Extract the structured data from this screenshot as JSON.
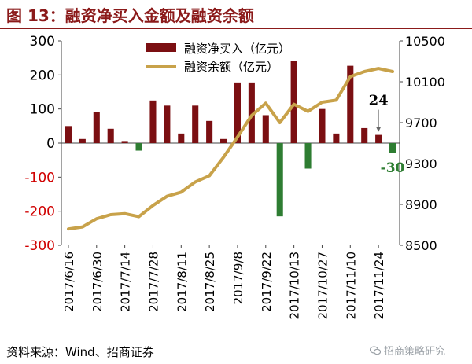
{
  "header": {
    "title": "图 13：融资净买入金额及融资余额"
  },
  "footer": {
    "source": "资料来源：Wind、招商证券",
    "watermark": "招商策略研究"
  },
  "colors": {
    "bar_positive": "#7b0f12",
    "bar_negative": "#2e7d32",
    "line": "#c8a24a",
    "title": "#8b1a1a",
    "negative_tick": "#d00000"
  },
  "chart_data": {
    "type": "bar+line",
    "x_ticks": [
      "2017/6/16",
      "2017/6/30",
      "2017/7/14",
      "2017/7/28",
      "2017/8/11",
      "2017/8/25",
      "2017/9/8",
      "2017/9/22",
      "2017/10/13",
      "2017/10/27",
      "2017/11/10",
      "2017/11/24"
    ],
    "categories": [
      "2017/6/16",
      "2017/6/23",
      "2017/6/30",
      "2017/7/7",
      "2017/7/14",
      "2017/7/21",
      "2017/7/28",
      "2017/8/4",
      "2017/8/11",
      "2017/8/18",
      "2017/8/25",
      "2017/9/1",
      "2017/9/8",
      "2017/9/15",
      "2017/9/22",
      "2017/9/29",
      "2017/10/13",
      "2017/10/20",
      "2017/10/27",
      "2017/11/3",
      "2017/11/10",
      "2017/11/17",
      "2017/11/24",
      "2017/12/1"
    ],
    "series": [
      {
        "name": "融资净买入（亿元）",
        "type": "bar",
        "axis": "left",
        "values": [
          50,
          12,
          90,
          42,
          6,
          -22,
          125,
          110,
          28,
          110,
          65,
          12,
          178,
          178,
          82,
          -215,
          240,
          -75,
          100,
          28,
          227,
          44,
          24,
          -30
        ]
      },
      {
        "name": "融资余额（亿元）",
        "type": "line",
        "axis": "right",
        "values": [
          8660,
          8680,
          8760,
          8800,
          8810,
          8780,
          8890,
          8980,
          9020,
          9120,
          9180,
          9360,
          9560,
          9770,
          9890,
          9700,
          9880,
          9810,
          9900,
          9920,
          10150,
          10200,
          10230,
          10200
        ]
      }
    ],
    "y_left": {
      "min": -300,
      "max": 300,
      "ticks": [
        "300",
        "200",
        "100",
        "0",
        "-100",
        "-200",
        "-300"
      ],
      "negative_ticks": [
        "-100",
        "-200",
        "-300"
      ]
    },
    "y_right": {
      "min": 8500,
      "max": 10500,
      "ticks": [
        "10500",
        "10100",
        "9700",
        "9300",
        "8900",
        "8500"
      ]
    },
    "annotations": [
      {
        "text": "24",
        "category": "2017/11/24",
        "value": 24
      },
      {
        "text": "-30",
        "category": "2017/12/1",
        "value": -30
      }
    ],
    "legend_position": "top-center",
    "grid": false
  }
}
